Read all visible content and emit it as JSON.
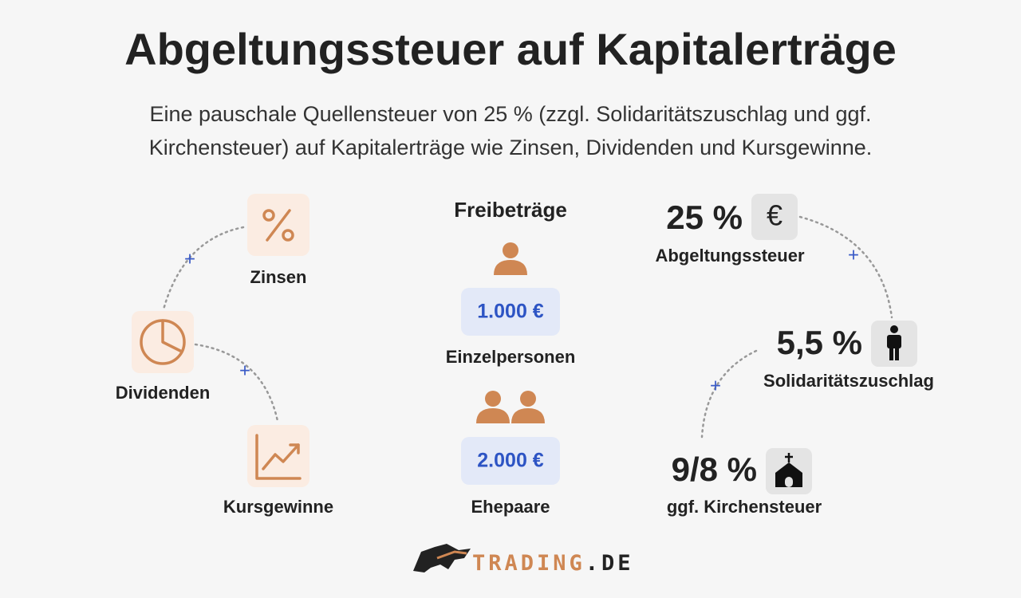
{
  "header": {
    "title": "Abgeltungssteuer auf Kapitalerträge",
    "subtitle": [
      "Eine pauschale Quellensteuer von 25 % (zzgl. Solidaritätszuschlag und ggf.",
      "Kirchensteuer) auf Kapitalerträge wie Zinsen, Dividenden und Kursgewinne."
    ]
  },
  "left": {
    "items": [
      "Zinsen",
      "Dividenden",
      "Kursgewinne"
    ],
    "connectors": [
      "+",
      "+"
    ]
  },
  "middle": {
    "title": "Freibeträge",
    "groups": [
      {
        "amount": "1.000 €",
        "label": "Einzelpersonen"
      },
      {
        "amount": "2.000 €",
        "label": "Ehepaare"
      }
    ]
  },
  "right": {
    "items": [
      {
        "value": "25 %",
        "label": "Abgeltungssteuer",
        "icon": "€"
      },
      {
        "value": "5,5 %",
        "label": "Solidaritätszuschlag"
      },
      {
        "value": "9/8 %",
        "label": "ggf. Kirchensteuer"
      }
    ],
    "connectors": [
      "+",
      "+"
    ]
  },
  "logo": {
    "parts": [
      "TRADING",
      ".DE"
    ]
  }
}
